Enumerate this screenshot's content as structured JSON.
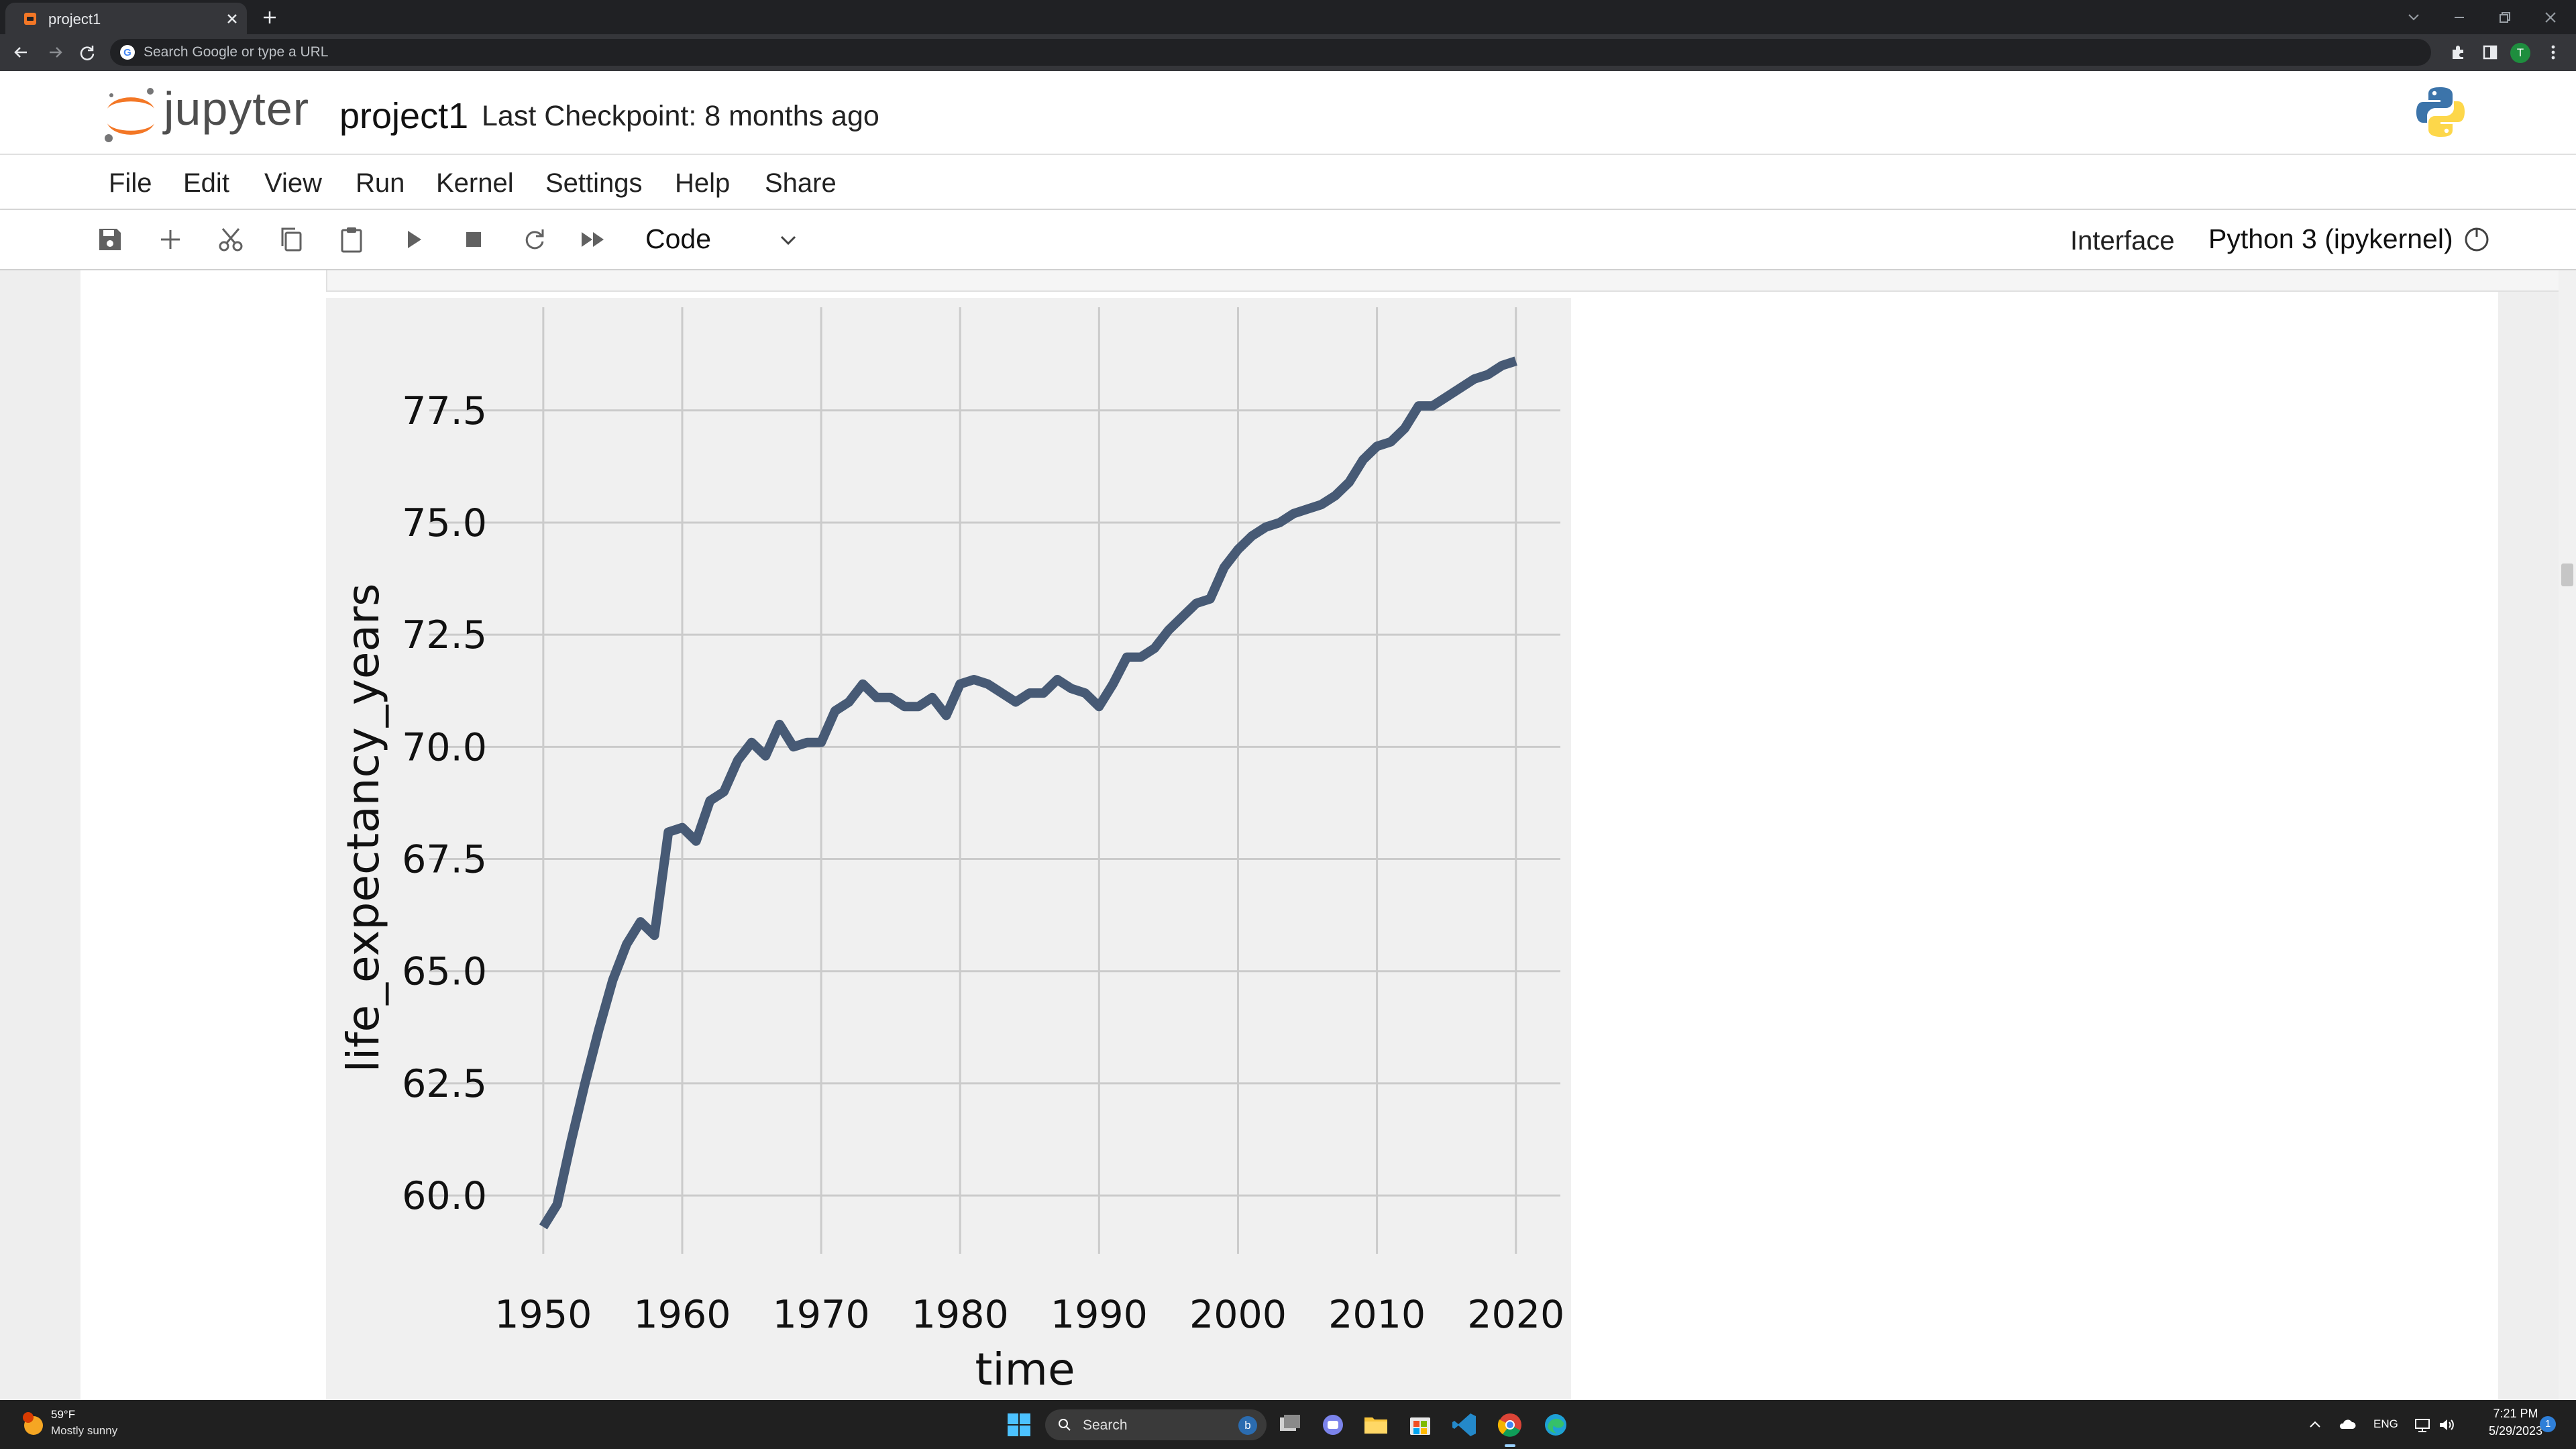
{
  "browser": {
    "tab_title": "project1",
    "omnibox_placeholder": "Search Google or type a URL",
    "profile_initial": "T"
  },
  "jupyter": {
    "logo_text": "jupyter",
    "notebook_title": "project1",
    "checkpoint": "Last Checkpoint: 8 months ago",
    "menu": [
      "File",
      "Edit",
      "View",
      "Run",
      "Kernel",
      "Settings",
      "Help",
      "Share"
    ],
    "cell_type": "Code",
    "interface_label": "Interface",
    "kernel_name": "Python 3 (ipykernel)"
  },
  "chart_data": {
    "type": "line",
    "xlabel": "time",
    "ylabel": "life_expectancy_years",
    "xlim": [
      1941.8,
      2023.2
    ],
    "ylim": [
      58.7,
      79.8
    ],
    "xticks": [
      1950,
      1960,
      1970,
      1980,
      1990,
      2000,
      2010,
      2020
    ],
    "yticks": [
      60.0,
      62.5,
      65.0,
      67.5,
      70.0,
      72.5,
      75.0,
      77.5
    ],
    "ytick_labels": [
      "60.0",
      "62.5",
      "65.0",
      "67.5",
      "70.0",
      "72.5",
      "75.0",
      "77.5"
    ],
    "grid": true,
    "style": "fivethirtyeight",
    "color": "#475a75",
    "series": [
      {
        "x": [
          1950,
          1951,
          1952,
          1953,
          1954,
          1955,
          1956,
          1957,
          1958,
          1959,
          1960,
          1961,
          1962,
          1963,
          1964,
          1965,
          1966,
          1967,
          1968,
          1969,
          1970,
          1971,
          1972,
          1973,
          1974,
          1975,
          1976,
          1977,
          1978,
          1979,
          1980,
          1981,
          1982,
          1983,
          1984,
          1985,
          1986,
          1987,
          1988,
          1989,
          1990,
          1991,
          1992,
          1993,
          1994,
          1995,
          1996,
          1997,
          1998,
          1999,
          2000,
          2001,
          2002,
          2003,
          2004,
          2005,
          2006,
          2007,
          2008,
          2009,
          2010,
          2011,
          2012,
          2013,
          2014,
          2015,
          2016,
          2017,
          2018,
          2019,
          2020
        ],
        "y": [
          59.3,
          59.8,
          61.2,
          62.5,
          63.7,
          64.8,
          65.6,
          66.1,
          65.8,
          68.1,
          68.2,
          67.9,
          68.8,
          69.0,
          69.7,
          70.1,
          69.8,
          70.5,
          70.0,
          70.1,
          70.1,
          70.8,
          71.0,
          71.4,
          71.1,
          71.1,
          70.9,
          70.9,
          71.1,
          70.7,
          71.4,
          71.5,
          71.4,
          71.2,
          71.0,
          71.2,
          71.2,
          71.5,
          71.3,
          71.2,
          70.9,
          71.4,
          72.0,
          72.0,
          72.2,
          72.6,
          72.9,
          73.2,
          73.3,
          74.0,
          74.4,
          74.7,
          74.9,
          75.0,
          75.2,
          75.3,
          75.4,
          75.6,
          75.9,
          76.4,
          76.7,
          76.8,
          77.1,
          77.6,
          77.6,
          77.8,
          78.0,
          78.2,
          78.3,
          78.5,
          78.6
        ]
      }
    ]
  }
}
